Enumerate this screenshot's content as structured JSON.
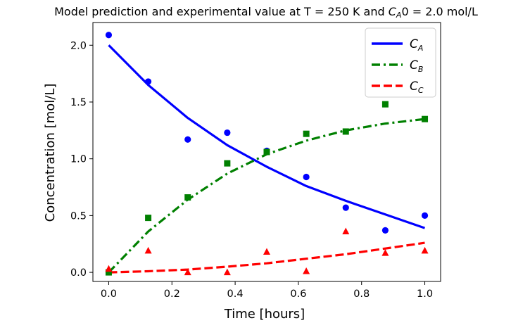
{
  "chart_data": {
    "type": "line",
    "title_main": "Model prediction and experimental value at T = 250 K and ",
    "title_ca": "C",
    "title_ca_sub": "A",
    "title_tail": "0 = 2.0 mol/L",
    "xlabel": "Time [hours]",
    "ylabel": "Concentration [mol/L]",
    "xlim": [
      -0.05,
      1.05
    ],
    "ylim": [
      -0.08,
      2.2
    ],
    "xticks": [
      0.0,
      0.2,
      0.4,
      0.6,
      0.8,
      1.0
    ],
    "xtick_labels": [
      "0.0",
      "0.2",
      "0.4",
      "0.6",
      "0.8",
      "1.0"
    ],
    "yticks": [
      0.0,
      0.5,
      1.0,
      1.5,
      2.0
    ],
    "ytick_labels": [
      "0.0",
      "0.5",
      "1.0",
      "1.5",
      "2.0"
    ],
    "legend_position": "top-right",
    "grid": false,
    "model_series": [
      {
        "name": "C",
        "sub": "A",
        "color": "#0000ff",
        "dash": "solid",
        "x": [
          0.0,
          0.125,
          0.25,
          0.375,
          0.5,
          0.625,
          0.75,
          0.875,
          1.0
        ],
        "y": [
          2.0,
          1.65,
          1.36,
          1.12,
          0.93,
          0.76,
          0.63,
          0.51,
          0.39
        ]
      },
      {
        "name": "C",
        "sub": "B",
        "color": "#008000",
        "dash": "dashdot",
        "x": [
          0.0,
          0.125,
          0.25,
          0.375,
          0.5,
          0.625,
          0.75,
          0.875,
          1.0
        ],
        "y": [
          0.0,
          0.36,
          0.64,
          0.87,
          1.04,
          1.16,
          1.25,
          1.31,
          1.35
        ]
      },
      {
        "name": "C",
        "sub": "C",
        "color": "#ff0000",
        "dash": "dashed",
        "x": [
          0.0,
          0.125,
          0.25,
          0.375,
          0.5,
          0.625,
          0.75,
          0.875,
          1.0
        ],
        "y": [
          0.0,
          0.01,
          0.025,
          0.05,
          0.08,
          0.12,
          0.16,
          0.21,
          0.26
        ]
      }
    ],
    "experimental_series": [
      {
        "color": "#0000ff",
        "marker": "circle",
        "x": [
          0.0,
          0.125,
          0.25,
          0.375,
          0.5,
          0.625,
          0.75,
          0.875,
          1.0
        ],
        "y": [
          2.09,
          1.68,
          1.17,
          1.23,
          1.07,
          0.84,
          0.57,
          0.37,
          0.5
        ]
      },
      {
        "color": "#008000",
        "marker": "square",
        "x": [
          0.0,
          0.125,
          0.25,
          0.375,
          0.5,
          0.625,
          0.75,
          0.875,
          1.0
        ],
        "y": [
          0.0,
          0.48,
          0.66,
          0.96,
          1.06,
          1.22,
          1.24,
          1.48,
          1.35
        ]
      },
      {
        "color": "#ff0000",
        "marker": "triangle",
        "x": [
          0.0,
          0.125,
          0.25,
          0.375,
          0.5,
          0.625,
          0.75,
          0.875,
          1.0
        ],
        "y": [
          0.03,
          0.19,
          0.0,
          0.0,
          0.18,
          0.01,
          0.36,
          0.17,
          0.19
        ]
      }
    ]
  }
}
